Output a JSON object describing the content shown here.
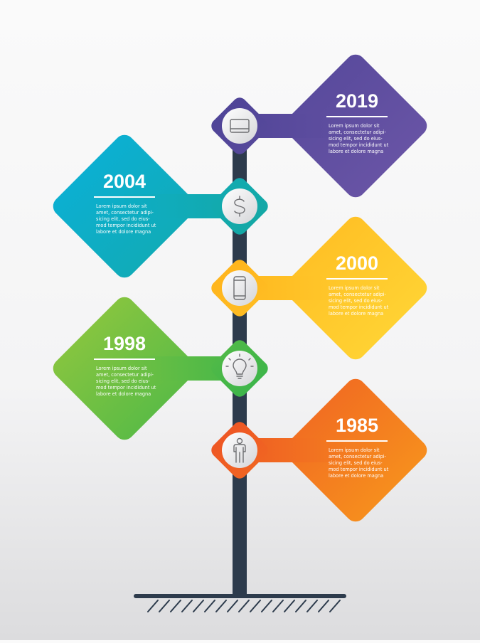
{
  "pole_color": "#2d3b4c",
  "events": [
    {
      "year": "2019",
      "side": "right",
      "text": "Lorem ipsum dolor sit\namet, consectetur adipi-\nsicing elit, sed do eius-\nmod tempor incididunt ut\nlabore et dolore magna",
      "icon": "credit-card-icon",
      "colors": [
        "#4f4497",
        "#6a55a6"
      ]
    },
    {
      "year": "2004",
      "side": "left",
      "text": "Lorem ipsum dolor sit\namet, consectetur adipi-\nsicing elit, sed do eius-\nmod tempor incididunt ut\nlabore et dolore magna",
      "icon": "dollar-icon",
      "colors": [
        "#0bb0d6",
        "#14a8a4"
      ]
    },
    {
      "year": "2000",
      "side": "right",
      "text": "Lorem ipsum dolor sit\namet, consectetur adipi-\nsicing elit, sed do eius-\nmod tempor incididunt ut\nlabore et dolore magna",
      "icon": "smartphone-icon",
      "colors": [
        "#ffb41c",
        "#ffd535"
      ]
    },
    {
      "year": "1998",
      "side": "left",
      "text": "Lorem ipsum dolor sit\namet, consectetur adipi-\nsicing elit, sed do eius-\nmod tempor incididunt ut\nlabore et dolore magna",
      "icon": "lightbulb-icon",
      "colors": [
        "#8dc63f",
        "#3bb54a"
      ]
    },
    {
      "year": "1985",
      "side": "right",
      "text": "Lorem ipsum dolor sit\namet, consectetur adipi-\nsicing elit, sed do eius-\nmod tempor incididunt ut\nlabore et dolore magna",
      "icon": "person-icon",
      "colors": [
        "#ee5524",
        "#f7941d"
      ]
    }
  ]
}
